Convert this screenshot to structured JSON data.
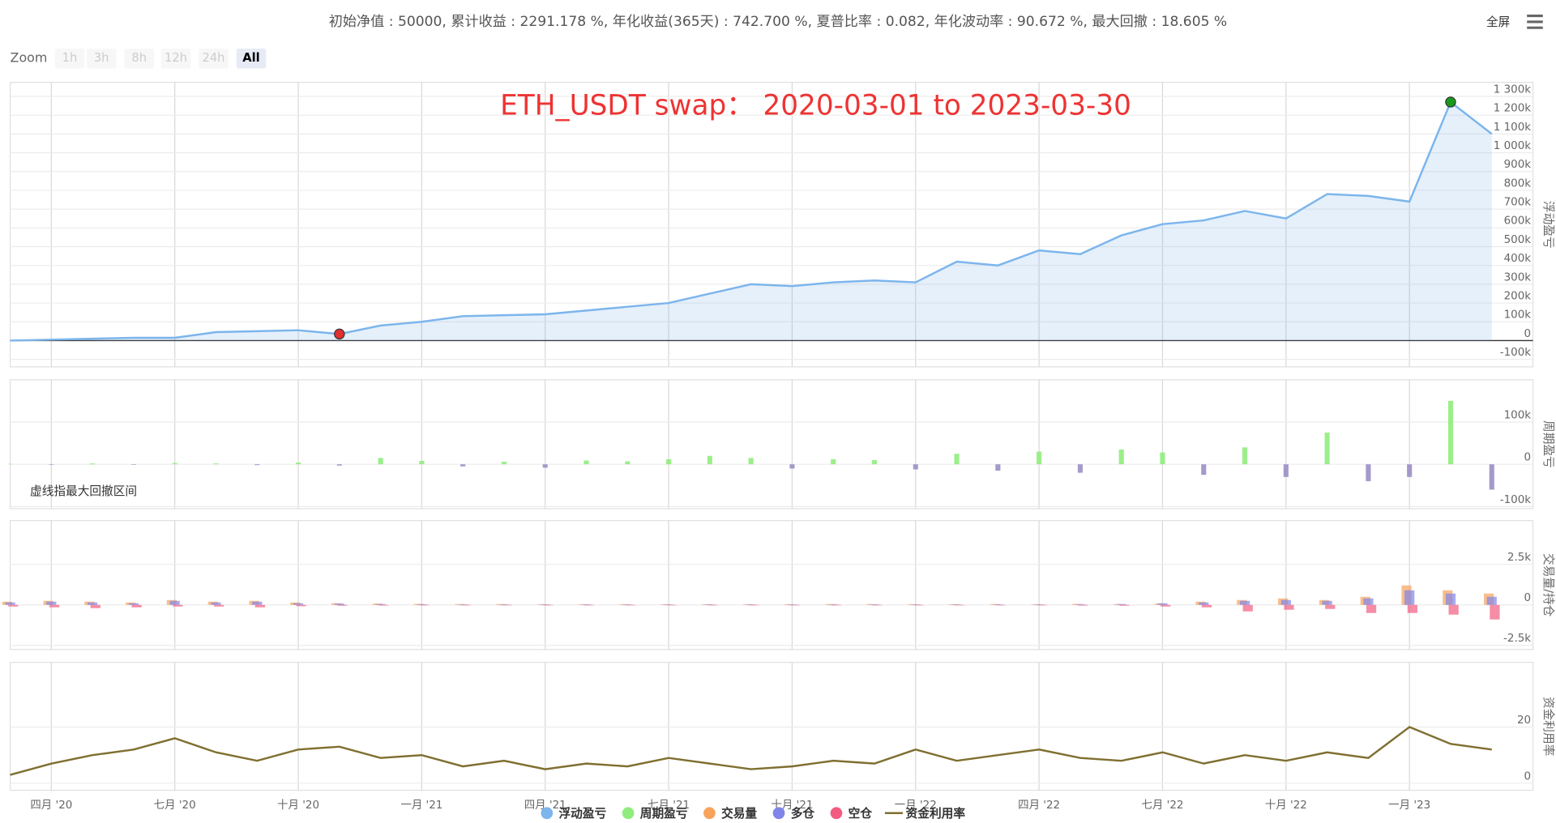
{
  "header": {
    "stats": "初始净值 : 50000, 累计收益 : 2291.178 %, 年化收益(365天) : 742.700 %, 夏普比率 : 0.082, 年化波动率 : 90.672 %, 最大回撤 : 18.605 %",
    "fullscreen": "全屏"
  },
  "zoom": {
    "label": "Zoom",
    "buttons": [
      "1h",
      "3h",
      "8h",
      "12h",
      "24h",
      "All"
    ],
    "selected": 5
  },
  "chart_data": [
    {
      "type": "area",
      "title": "ETH_USDT swap： 2020-03-01 to 2023-03-30",
      "y_label": "浮动盈亏",
      "x": [
        "2020-03",
        "2020-04",
        "2020-05",
        "2020-06",
        "2020-07",
        "2020-08",
        "2020-09",
        "2020-10",
        "2020-11",
        "2020-12",
        "2021-01",
        "2021-02",
        "2021-03",
        "2021-04",
        "2021-05",
        "2021-06",
        "2021-07",
        "2021-08",
        "2021-09",
        "2021-10",
        "2021-11",
        "2021-12",
        "2022-01",
        "2022-02",
        "2022-03",
        "2022-04",
        "2022-05",
        "2022-06",
        "2022-07",
        "2022-08",
        "2022-09",
        "2022-10",
        "2022-11",
        "2022-12",
        "2023-01",
        "2023-02",
        "2023-03"
      ],
      "series": [
        {
          "name": "浮动盈亏",
          "color": "#7cb5ec",
          "values": [
            0,
            5000,
            10000,
            15000,
            15000,
            45000,
            50000,
            55000,
            35000,
            80000,
            100000,
            130000,
            135000,
            140000,
            160000,
            180000,
            200000,
            250000,
            300000,
            290000,
            310000,
            320000,
            310000,
            420000,
            400000,
            480000,
            460000,
            560000,
            620000,
            640000,
            690000,
            650000,
            780000,
            770000,
            740000,
            1270000,
            1100000
          ]
        }
      ],
      "markers": [
        {
          "x": "2020-11",
          "value": 35000,
          "color": "#e03030"
        },
        {
          "x": "2023-02",
          "value": 1270000,
          "color": "#1a9a1a"
        }
      ],
      "ylim": [
        -140000,
        1375000
      ],
      "yticks": [
        {
          "value": -100000,
          "label": "-100k"
        },
        0,
        {
          "value": 100000,
          "label": "100k"
        },
        {
          "value": 200000,
          "label": "200k"
        },
        {
          "value": 300000,
          "label": "300k"
        },
        {
          "value": 400000,
          "label": "400k"
        },
        {
          "value": 500000,
          "label": "500k"
        },
        {
          "value": 600000,
          "label": "600k"
        },
        {
          "value": 700000,
          "label": "700k"
        },
        {
          "value": 800000,
          "label": "800k"
        },
        {
          "value": 900000,
          "label": "900k"
        },
        {
          "value": 1000000,
          "label": "1 000k"
        },
        {
          "value": 1100000,
          "label": "1 100k"
        },
        {
          "value": 1200000,
          "label": "1 200k"
        },
        {
          "value": 1300000,
          "label": "1 300k"
        }
      ],
      "grid": true
    },
    {
      "type": "bar",
      "y_label": "周期盈亏",
      "annotation": "虚线指最大回撤区间",
      "x": [
        "2020-03",
        "2020-04",
        "2020-05",
        "2020-06",
        "2020-07",
        "2020-08",
        "2020-09",
        "2020-10",
        "2020-11",
        "2020-12",
        "2021-01",
        "2021-02",
        "2021-03",
        "2021-04",
        "2021-05",
        "2021-06",
        "2021-07",
        "2021-08",
        "2021-09",
        "2021-10",
        "2021-11",
        "2021-12",
        "2022-01",
        "2022-02",
        "2022-03",
        "2022-04",
        "2022-05",
        "2022-06",
        "2022-07",
        "2022-08",
        "2022-09",
        "2022-10",
        "2022-11",
        "2022-12",
        "2023-01",
        "2023-02",
        "2023-03"
      ],
      "series": [
        {
          "name": "周期盈亏",
          "color": "#90ed7d",
          "negative_color": "#9b8fc4",
          "values": [
            1000,
            -1000,
            2000,
            -1000,
            3000,
            2000,
            -2000,
            4000,
            -3000,
            15000,
            8000,
            -5000,
            6000,
            -8000,
            9000,
            7000,
            12000,
            20000,
            15000,
            -10000,
            12000,
            10000,
            -12000,
            25000,
            -15000,
            30000,
            -20000,
            35000,
            28000,
            -25000,
            40000,
            -30000,
            75000,
            -40000,
            -30000,
            150000,
            -60000
          ]
        }
      ],
      "ylim": [
        -105000,
        200000
      ],
      "yticks": [
        {
          "value": -100000,
          "label": "-100k"
        },
        0,
        {
          "value": 100000,
          "label": "100k"
        }
      ],
      "grid": true
    },
    {
      "type": "bar",
      "y_label": "交易量/持仓",
      "x": [
        "2020-03",
        "2020-04",
        "2020-05",
        "2020-06",
        "2020-07",
        "2020-08",
        "2020-09",
        "2020-10",
        "2020-11",
        "2020-12",
        "2021-01",
        "2021-02",
        "2021-03",
        "2021-04",
        "2021-05",
        "2021-06",
        "2021-07",
        "2021-08",
        "2021-09",
        "2021-10",
        "2021-11",
        "2021-12",
        "2022-01",
        "2022-02",
        "2022-03",
        "2022-04",
        "2022-05",
        "2022-06",
        "2022-07",
        "2022-08",
        "2022-09",
        "2022-10",
        "2022-11",
        "2022-12",
        "2023-01",
        "2023-02",
        "2023-03"
      ],
      "series": [
        {
          "name": "交易量",
          "color": "#f7a35c",
          "values": [
            200,
            250,
            200,
            150,
            300,
            200,
            250,
            150,
            100,
            80,
            60,
            50,
            50,
            40,
            40,
            40,
            40,
            40,
            40,
            40,
            50,
            50,
            40,
            40,
            50,
            40,
            60,
            50,
            80,
            200,
            300,
            400,
            300,
            500,
            1200,
            900,
            700
          ]
        },
        {
          "name": "多仓",
          "color": "#8085e9",
          "values": [
            150,
            200,
            150,
            100,
            250,
            150,
            200,
            100,
            80,
            50,
            40,
            30,
            30,
            30,
            30,
            20,
            20,
            20,
            20,
            20,
            30,
            30,
            20,
            20,
            30,
            30,
            40,
            50,
            100,
            150,
            250,
            300,
            250,
            400,
            900,
            700,
            500
          ]
        },
        {
          "name": "空仓",
          "color": "#f15c80",
          "values": [
            -100,
            -150,
            -200,
            -150,
            -100,
            -100,
            -150,
            -80,
            -50,
            -40,
            -30,
            -30,
            -20,
            -20,
            -20,
            -20,
            -20,
            -20,
            -20,
            -20,
            -30,
            -20,
            -20,
            -20,
            -30,
            -20,
            -40,
            -50,
            -100,
            -150,
            -400,
            -300,
            -250,
            -500,
            -500,
            -600,
            -900
          ]
        }
      ],
      "ylim": [
        -2750,
        5200
      ],
      "yticks": [
        {
          "value": -2500,
          "label": "-2.5k"
        },
        0,
        {
          "value": 2500,
          "label": "2.5k"
        }
      ],
      "grid": true
    },
    {
      "type": "line",
      "y_label": "资金利用率",
      "x": [
        "2020-03",
        "2020-04",
        "2020-05",
        "2020-06",
        "2020-07",
        "2020-08",
        "2020-09",
        "2020-10",
        "2020-11",
        "2020-12",
        "2021-01",
        "2021-02",
        "2021-03",
        "2021-04",
        "2021-05",
        "2021-06",
        "2021-07",
        "2021-08",
        "2021-09",
        "2021-10",
        "2021-11",
        "2021-12",
        "2022-01",
        "2022-02",
        "2022-03",
        "2022-04",
        "2022-05",
        "2022-06",
        "2022-07",
        "2022-08",
        "2022-09",
        "2022-10",
        "2022-11",
        "2022-12",
        "2023-01",
        "2023-02",
        "2023-03"
      ],
      "series": [
        {
          "name": "资金利用率",
          "color": "#7f6f30",
          "values": [
            3,
            7,
            10,
            12,
            16,
            11,
            8,
            12,
            13,
            9,
            10,
            6,
            8,
            5,
            7,
            6,
            9,
            7,
            5,
            6,
            8,
            7,
            12,
            8,
            10,
            12,
            9,
            8,
            11,
            7,
            10,
            8,
            11,
            9,
            20,
            14,
            12
          ]
        }
      ],
      "ylim": [
        -2.5,
        43
      ],
      "yticks": [
        0,
        20
      ],
      "xlim": [
        "2020-03",
        "2023-04"
      ],
      "xticks": [
        {
          "value": "2020-04",
          "label": "四月 '20"
        },
        {
          "value": "2020-07",
          "label": "七月 '20"
        },
        {
          "value": "2020-10",
          "label": "十月 '20"
        },
        {
          "value": "2021-01",
          "label": "一月 '21"
        },
        {
          "value": "2021-04",
          "label": "四月 '21"
        },
        {
          "value": "2021-07",
          "label": "七月 '21"
        },
        {
          "value": "2021-10",
          "label": "十月 '21"
        },
        {
          "value": "2022-01",
          "label": "一月 '22"
        },
        {
          "value": "2022-04",
          "label": "四月 '22"
        },
        {
          "value": "2022-07",
          "label": "七月 '22"
        },
        {
          "value": "2022-10",
          "label": "十月 '22"
        },
        {
          "value": "2023-01",
          "label": "一月 '23"
        }
      ],
      "grid": true
    }
  ]
}
